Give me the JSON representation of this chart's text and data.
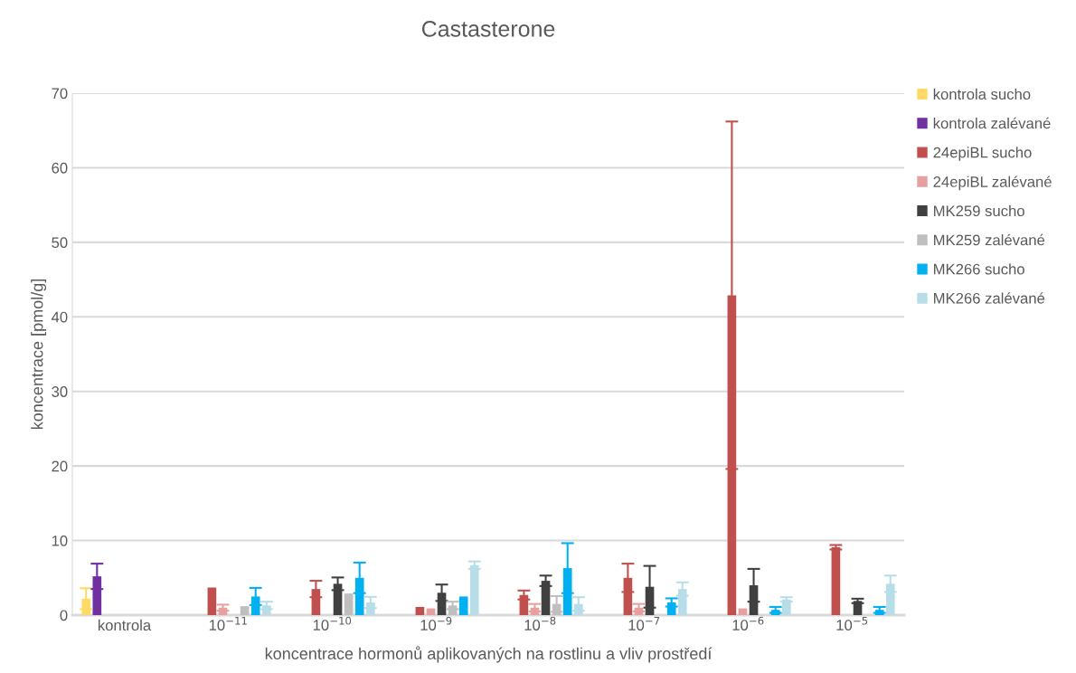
{
  "chart_data": {
    "type": "bar",
    "title": "Castasterone",
    "xlabel": "koncentrace hormonů aplikovaných na rostlinu a vliv prostředí",
    "ylabel": "koncentrace [pmol/g]",
    "categories": [
      "kontrola",
      "10$^{−11}$",
      "10$^{−10}$",
      "10$^{−9}$",
      "10$^{−8}$",
      "10$^{−7}$",
      "10$^{−6}$",
      "10$^{−5}$"
    ],
    "series": [
      {
        "name": "kontrola sucho",
        "color": "#ffd966",
        "values": [
          2.2,
          null,
          null,
          null,
          null,
          null,
          null,
          null
        ],
        "errors": [
          1.4,
          null,
          null,
          null,
          null,
          null,
          null,
          null
        ]
      },
      {
        "name": "kontrola zalévané",
        "color": "#7030a0",
        "values": [
          5.2,
          null,
          null,
          null,
          null,
          null,
          null,
          null
        ],
        "errors": [
          1.7,
          null,
          null,
          null,
          null,
          null,
          null,
          null
        ]
      },
      {
        "name": "24epiBL sucho",
        "color": "#c0504d",
        "values": [
          null,
          3.7,
          3.5,
          1.1,
          2.7,
          5.0,
          42.9,
          9.1
        ],
        "errors": [
          null,
          null,
          1.1,
          null,
          0.6,
          1.9,
          23.3,
          0.3
        ]
      },
      {
        "name": "24epiBL zalévané",
        "color": "#e6a0a0",
        "values": [
          null,
          1.0,
          null,
          0.9,
          1.0,
          1.0,
          0.9,
          null
        ],
        "errors": [
          null,
          0.4,
          null,
          null,
          0.5,
          0.5,
          null,
          null
        ]
      },
      {
        "name": "MK259 sucho",
        "color": "#404040",
        "values": [
          null,
          null,
          4.2,
          3.0,
          4.6,
          3.8,
          4.0,
          1.9
        ],
        "errors": [
          null,
          null,
          0.85,
          1.1,
          0.7,
          2.8,
          2.2,
          0.3
        ]
      },
      {
        "name": "MK259 zalévané",
        "color": "#bfbfbf",
        "values": [
          null,
          1.2,
          2.9,
          1.3,
          1.5,
          null,
          null,
          null
        ],
        "errors": [
          null,
          null,
          null,
          0.5,
          1.05,
          null,
          null,
          null
        ]
      },
      {
        "name": "MK266 sucho",
        "color": "#00b0f0",
        "values": [
          null,
          2.5,
          5.0,
          2.5,
          6.3,
          1.7,
          0.7,
          0.7
        ],
        "errors": [
          null,
          1.15,
          2.05,
          null,
          3.35,
          0.55,
          0.4,
          0.4
        ]
      },
      {
        "name": "MK266 zalévané",
        "color": "#b7dee8",
        "values": [
          null,
          1.3,
          1.7,
          6.7,
          1.5,
          3.5,
          2.1,
          4.2
        ],
        "errors": [
          null,
          0.5,
          0.75,
          0.5,
          0.9,
          0.9,
          0.3,
          1.1
        ]
      }
    ],
    "ylim": [
      0,
      70
    ],
    "yticks": [
      0,
      10,
      20,
      30,
      40,
      50,
      60,
      70
    ],
    "grid": "y",
    "legend": "right"
  }
}
